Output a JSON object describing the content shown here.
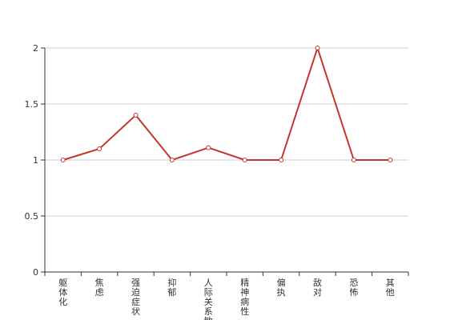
{
  "chart_data": {
    "type": "line",
    "categories": [
      "躯体化",
      "焦虑",
      "强迫症状",
      "抑郁",
      "人际关系敏感",
      "精神病性",
      "偏执",
      "敌对",
      "恐怖",
      "其他"
    ],
    "series": [
      {
        "values": [
          1,
          1.1,
          1.4,
          1,
          1.11,
          1,
          1,
          2,
          1,
          1
        ]
      }
    ],
    "ylim": [
      0,
      2
    ],
    "yticks": [
      0,
      0.5,
      1,
      1.5,
      2
    ],
    "ytick_labels": [
      "0",
      "0.5",
      "1",
      "1.5",
      "2"
    ],
    "grid": true,
    "line_color": "#c23531",
    "grid_color": "#cccccc",
    "axis_color": "#333333"
  }
}
